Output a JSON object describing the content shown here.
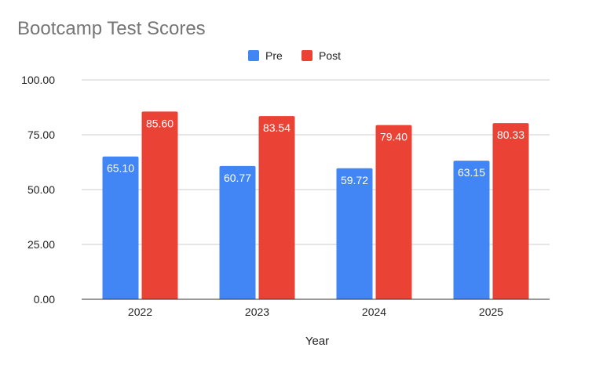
{
  "chart_data": {
    "type": "bar",
    "title": "Bootcamp Test Scores",
    "xlabel": "Year",
    "ylabel": "",
    "categories": [
      "2022",
      "2023",
      "2024",
      "2025"
    ],
    "series": [
      {
        "name": "Pre",
        "color": "#4285f4",
        "values": [
          65.1,
          60.77,
          59.72,
          63.15
        ]
      },
      {
        "name": "Post",
        "color": "#ea4335",
        "values": [
          85.6,
          83.54,
          79.4,
          80.33
        ]
      }
    ],
    "ylim": [
      0,
      100
    ],
    "yticks": [
      "0.00",
      "25.00",
      "50.00",
      "75.00",
      "100.00"
    ],
    "data_labels": [
      [
        "65.10",
        "60.77",
        "59.72",
        "63.15"
      ],
      [
        "85.60",
        "83.54",
        "79.40",
        "80.33"
      ]
    ],
    "legend_position": "top-center",
    "grid": true
  }
}
